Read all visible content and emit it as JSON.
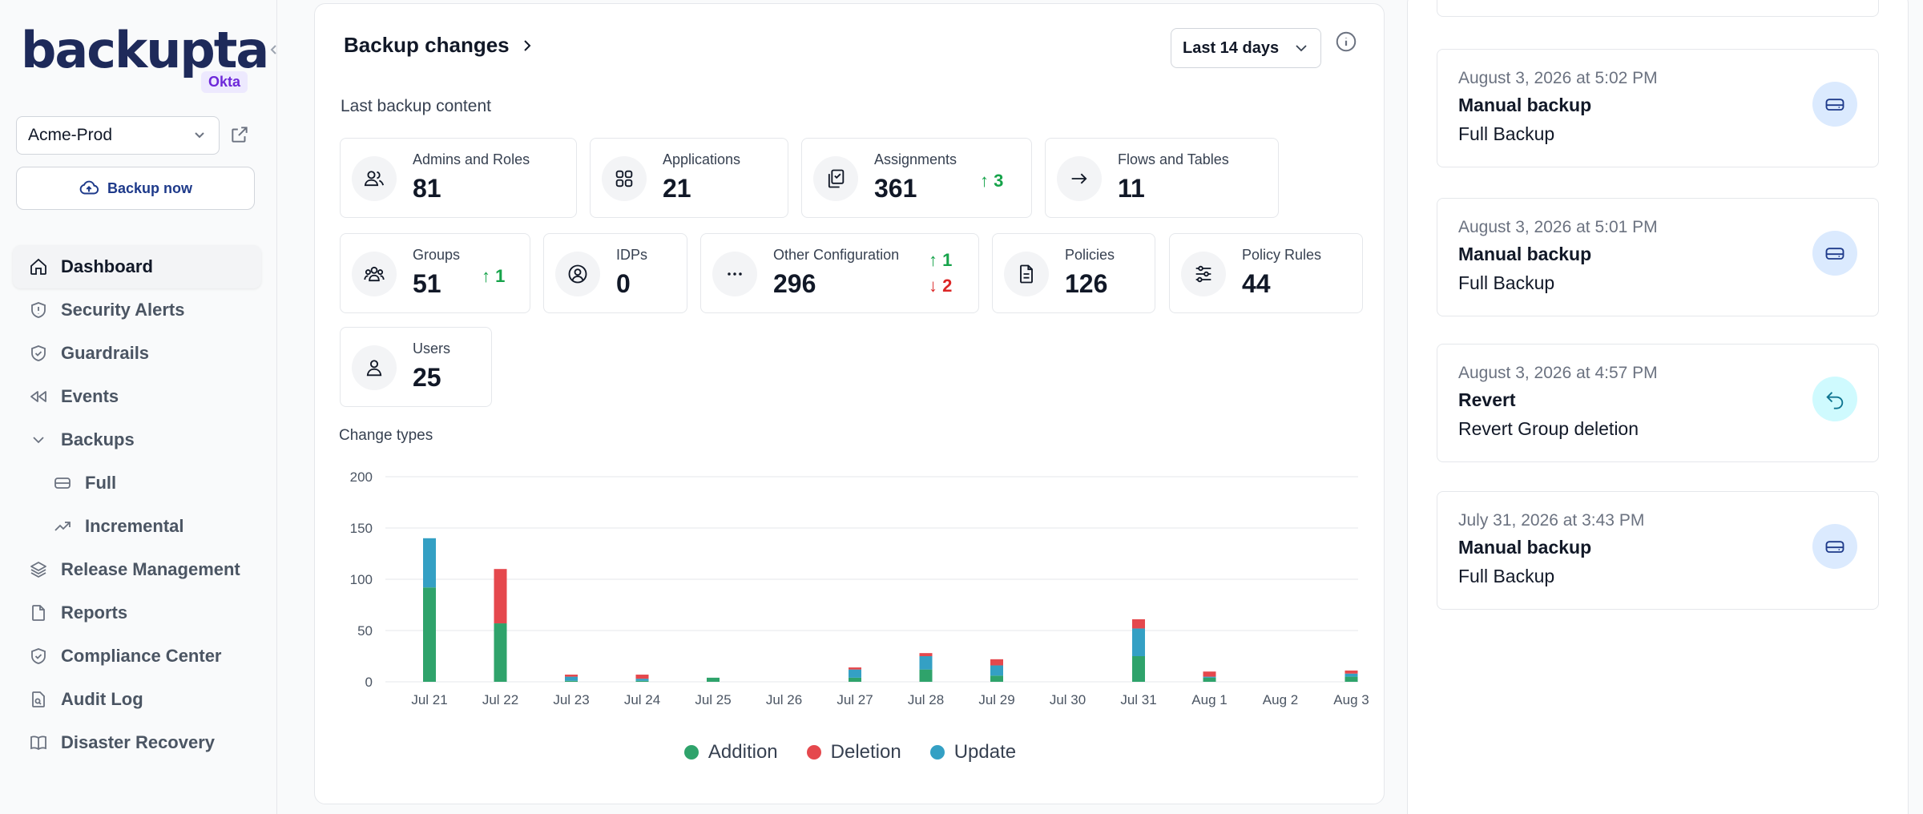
{
  "sidebar": {
    "logo_text": "backupta",
    "badge": "Okta",
    "tenant": "Acme-Prod",
    "backup_now_label": "Backup now",
    "items": [
      {
        "label": "Dashboard",
        "icon": "home-icon"
      },
      {
        "label": "Security Alerts",
        "icon": "shield-alert-icon"
      },
      {
        "label": "Guardrails",
        "icon": "shield-check-icon"
      },
      {
        "label": "Events",
        "icon": "rewind-icon"
      },
      {
        "label": "Backups",
        "icon": "chevron-down-icon"
      },
      {
        "label": "Full",
        "icon": "hard-drive-icon"
      },
      {
        "label": "Incremental",
        "icon": "trending-up-icon"
      },
      {
        "label": "Release Management",
        "icon": "layers-icon"
      },
      {
        "label": "Reports",
        "icon": "file-icon"
      },
      {
        "label": "Compliance Center",
        "icon": "shield-check-icon"
      },
      {
        "label": "Audit Log",
        "icon": "file-search-icon"
      },
      {
        "label": "Disaster Recovery",
        "icon": "book-icon"
      }
    ]
  },
  "main": {
    "title": "Backup changes",
    "range": "Last 14 days",
    "section_label": "Last backup content",
    "stats": [
      {
        "label": "Admins and Roles",
        "value": "81",
        "icon": "users-icon"
      },
      {
        "label": "Applications",
        "value": "21",
        "icon": "grid-icon"
      },
      {
        "label": "Assignments",
        "value": "361",
        "icon": "clipboard-icon",
        "up": "3"
      },
      {
        "label": "Flows and Tables",
        "value": "11",
        "icon": "arrow-right-icon"
      },
      {
        "label": "Groups",
        "value": "51",
        "icon": "users-group-icon",
        "up": "1"
      },
      {
        "label": "IDPs",
        "value": "0",
        "icon": "user-circle-icon"
      },
      {
        "label": "Other Configuration",
        "value": "296",
        "icon": "more-icon",
        "up": "1",
        "down": "2"
      },
      {
        "label": "Policies",
        "value": "126",
        "icon": "document-icon"
      },
      {
        "label": "Policy Rules",
        "value": "44",
        "icon": "sliders-icon"
      },
      {
        "label": "Users",
        "value": "25",
        "icon": "user-icon"
      }
    ],
    "chart_label": "Change types"
  },
  "chart_data": {
    "type": "bar",
    "stacked": true,
    "title": "Change types",
    "categories": [
      "Jul 21",
      "Jul 22",
      "Jul 23",
      "Jul 24",
      "Jul 25",
      "Jul 26",
      "Jul 27",
      "Jul 28",
      "Jul 29",
      "Jul 30",
      "Jul 31",
      "Aug 1",
      "Aug 2",
      "Aug 3"
    ],
    "series": [
      {
        "name": "Addition",
        "color": "#2fa36b",
        "values": [
          92,
          57,
          1,
          1,
          4,
          0,
          4,
          12,
          6,
          0,
          25,
          4,
          0,
          5
        ]
      },
      {
        "name": "Update",
        "color": "#34a0c4",
        "values": [
          48,
          0,
          4,
          2,
          0,
          0,
          8,
          13,
          10,
          0,
          27,
          1,
          0,
          3
        ]
      },
      {
        "name": "Deletion",
        "color": "#e5484d",
        "values": [
          0,
          53,
          2,
          4,
          0,
          0,
          2,
          3,
          6,
          0,
          9,
          5,
          0,
          3
        ]
      }
    ],
    "yticks": [
      0,
      50,
      100,
      150,
      200
    ],
    "ylim": [
      0,
      200
    ],
    "grid": true,
    "legend": "bottom"
  },
  "history": [
    {
      "date": "August 3, 2026 at 5:02 PM",
      "type": "Manual backup",
      "desc": "Full Backup",
      "icon": "hard-drive-icon",
      "icon_bg": "#dbeafe"
    },
    {
      "date": "August 3, 2026 at 5:01 PM",
      "type": "Manual backup",
      "desc": "Full Backup",
      "icon": "hard-drive-icon",
      "icon_bg": "#dbeafe"
    },
    {
      "date": "August 3, 2026 at 4:57 PM",
      "type": "Revert",
      "desc": "Revert Group deletion",
      "icon": "undo-icon",
      "icon_bg": "#cffafe"
    },
    {
      "date": "July 31, 2026 at 3:43 PM",
      "type": "Manual backup",
      "desc": "Full Backup",
      "icon": "hard-drive-icon",
      "icon_bg": "#dbeafe"
    }
  ]
}
